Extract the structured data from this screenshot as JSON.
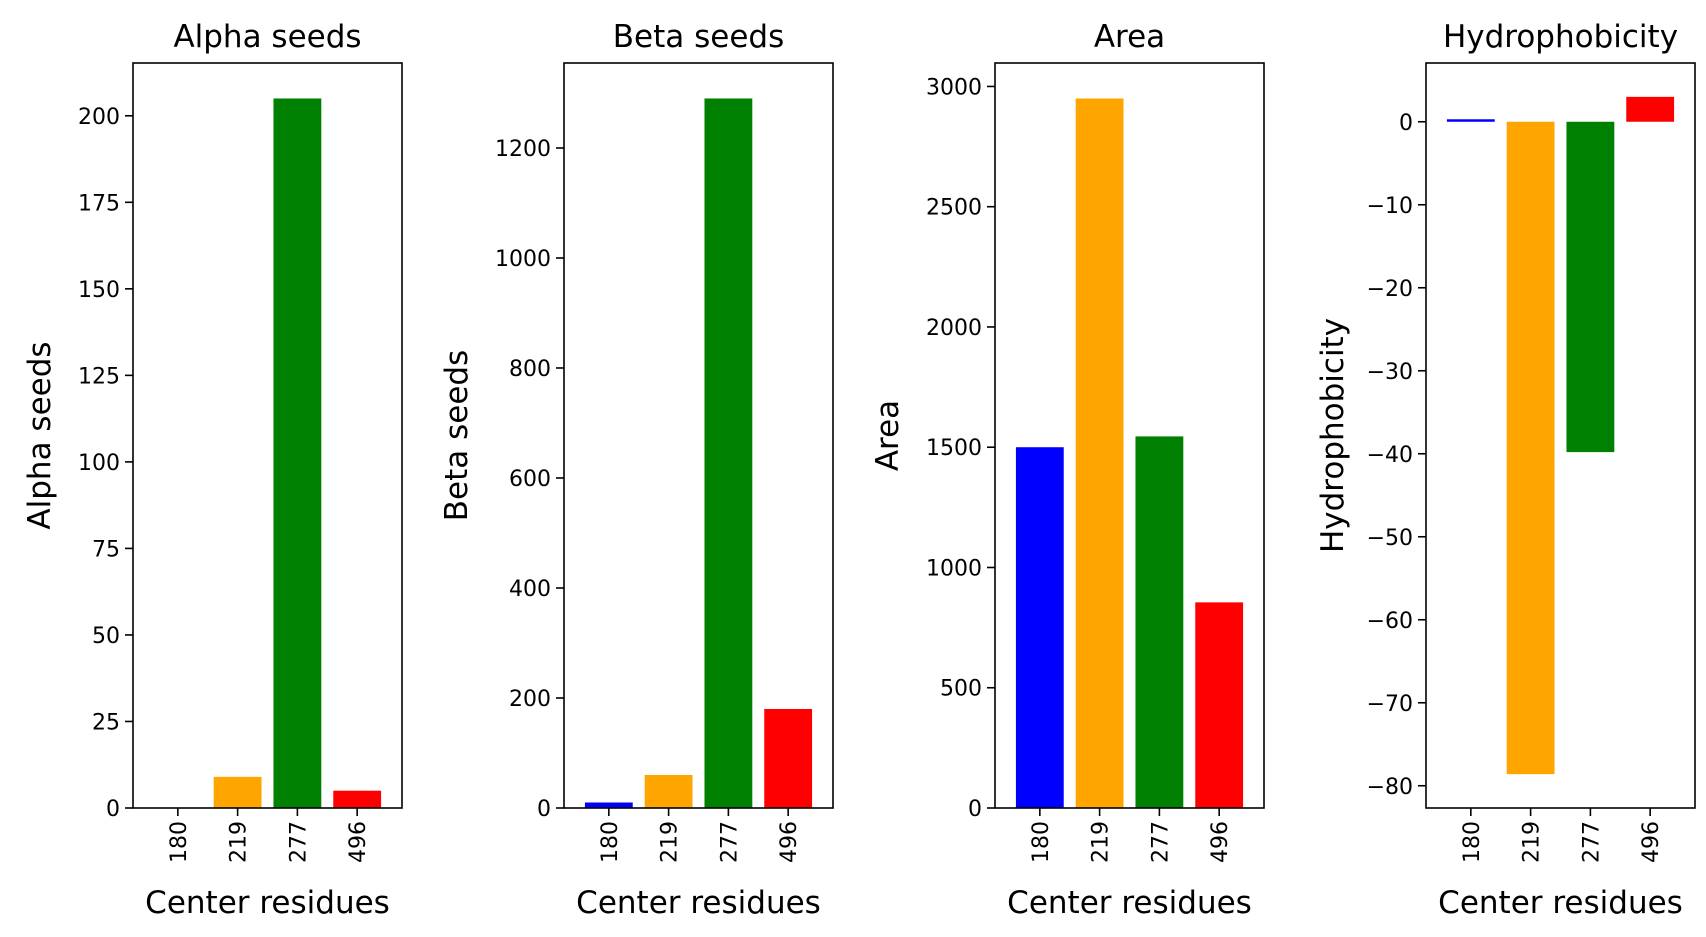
{
  "figure": {
    "background": "#ffffff"
  },
  "chart_data": [
    {
      "type": "bar",
      "title": "Alpha seeds",
      "xlabel": "Center residues",
      "ylabel": "Alpha seeds",
      "categories": [
        "180",
        "219",
        "277",
        "496"
      ],
      "values": [
        0,
        9,
        205,
        5
      ],
      "colors": [
        "#0000ff",
        "#ffa500",
        "#008000",
        "#ff0000"
      ],
      "ylim": [
        0,
        215.25
      ],
      "yticks": [
        0,
        25,
        50,
        75,
        100,
        125,
        150,
        175,
        200
      ],
      "ytick_labels": [
        "0",
        "25",
        "50",
        "75",
        "100",
        "125",
        "150",
        "175",
        "200"
      ],
      "grid": false,
      "legend": "none"
    },
    {
      "type": "bar",
      "title": "Beta seeds",
      "xlabel": "Center residues",
      "ylabel": "Beta seeds",
      "categories": [
        "180",
        "219",
        "277",
        "496"
      ],
      "values": [
        10,
        60,
        1290,
        180
      ],
      "colors": [
        "#0000ff",
        "#ffa500",
        "#008000",
        "#ff0000"
      ],
      "ylim": [
        0,
        1354.5
      ],
      "yticks": [
        0,
        200,
        400,
        600,
        800,
        1000,
        1200
      ],
      "ytick_labels": [
        "0",
        "200",
        "400",
        "600",
        "800",
        "1000",
        "1200"
      ],
      "grid": false,
      "legend": "none"
    },
    {
      "type": "bar",
      "title": "Area",
      "xlabel": "Center residues",
      "ylabel": "Area",
      "categories": [
        "180",
        "219",
        "277",
        "496"
      ],
      "values": [
        1500,
        2950,
        1545,
        855
      ],
      "colors": [
        "#0000ff",
        "#ffa500",
        "#008000",
        "#ff0000"
      ],
      "ylim": [
        0,
        3097.5
      ],
      "yticks": [
        0,
        500,
        1000,
        1500,
        2000,
        2500,
        3000
      ],
      "ytick_labels": [
        "0",
        "500",
        "1000",
        "1500",
        "2000",
        "2500",
        "3000"
      ],
      "grid": false,
      "legend": "none"
    },
    {
      "type": "bar",
      "title": "Hydrophobicity",
      "xlabel": "Center residues",
      "ylabel": "Hydrophobicity",
      "categories": [
        "180",
        "219",
        "277",
        "496"
      ],
      "values": [
        0.3,
        -78.6,
        -39.8,
        3.0
      ],
      "colors": [
        "#0000ff",
        "#ffa500",
        "#008000",
        "#ff0000"
      ],
      "ylim": [
        -82.68,
        7.08
      ],
      "yticks": [
        0,
        -10,
        -20,
        -30,
        -40,
        -50,
        -60,
        -70,
        -80
      ],
      "ytick_labels": [
        "0",
        "−10",
        "−20",
        "−30",
        "−40",
        "−50",
        "−60",
        "−70",
        "−80"
      ],
      "grid": false,
      "legend": "none"
    }
  ]
}
